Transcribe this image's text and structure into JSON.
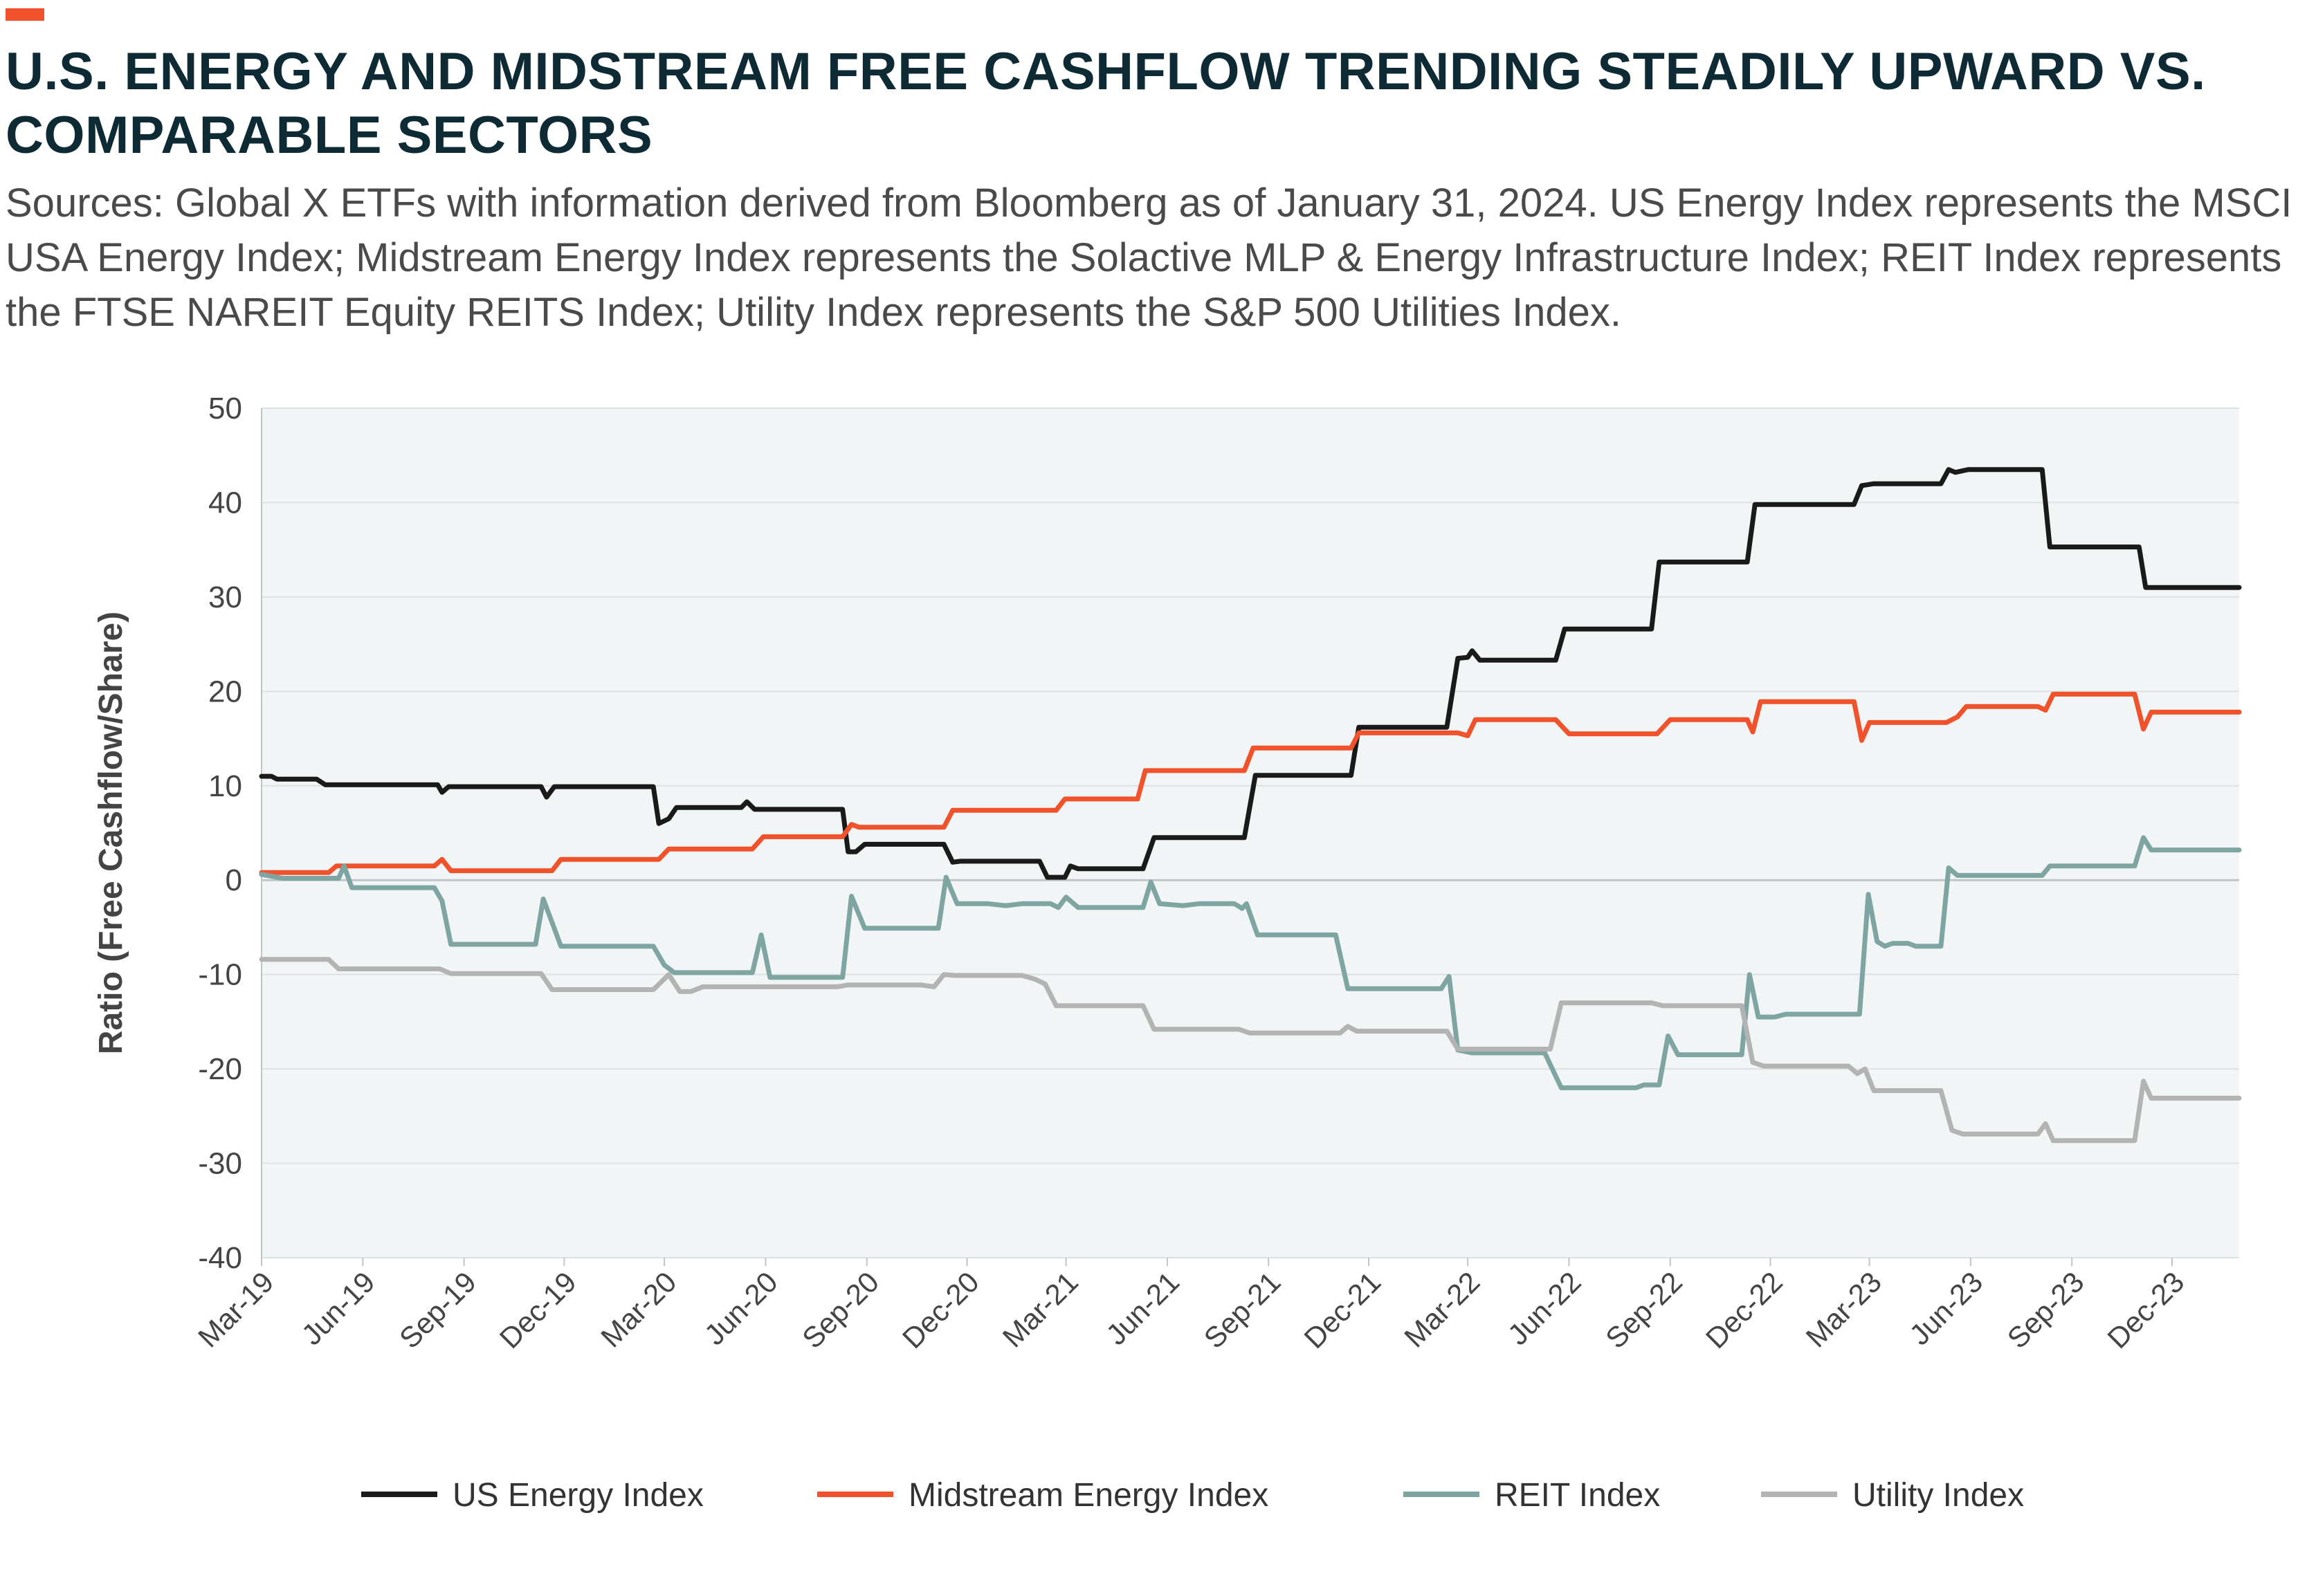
{
  "header": {
    "title": "U.S. ENERGY AND MIDSTREAM FREE CASHFLOW TRENDING STEADILY UPWARD VS. COMPARABLE SECTORS",
    "subtitle": "Sources: Global X ETFs with information derived from Bloomberg as of January 31, 2024. US Energy Index represents the MSCI USA Energy Index; Midstream Energy Index represents the Solactive MLP & Energy Infrastructure Index; REIT Index represents the FTSE NAREIT Equity REITS Index; Utility Index represents the S&P 500 Utilities Index.",
    "accent_color": "#F0532B"
  },
  "chart_data": {
    "type": "line",
    "title": "U.S. ENERGY AND MIDSTREAM FREE CASHFLOW TRENDING STEADILY UPWARD VS. COMPARABLE SECTORS",
    "xlabel": "",
    "ylabel": "Ratio (Free Cashflow/Share)",
    "ylim": [
      -40,
      50
    ],
    "yticks": [
      "50",
      "40",
      "30",
      "20",
      "10",
      "0",
      "-10",
      "-20",
      "-30",
      "-40"
    ],
    "xticks": [
      "Mar-19",
      "Jun-19",
      "Sep-19",
      "Dec-19",
      "Mar-20",
      "Jun-20",
      "Sep-20",
      "Dec-20",
      "Mar-21",
      "Jun-21",
      "Sep-21",
      "Dec-21",
      "Mar-22",
      "Jun-22",
      "Sep-22",
      "Dec-22",
      "Mar-23",
      "Jun-23",
      "Sep-23",
      "Dec-23"
    ],
    "xlim": [
      "2019-03-01",
      "2024-01-31"
    ],
    "grid": true,
    "legend_position": "bottom",
    "background_color": "#F2F5F5",
    "series": [
      {
        "name": "US Energy Index",
        "color": "#1A1A1A",
        "points": [
          [
            "2019-03-01",
            11.0
          ],
          [
            "2019-03-10",
            11.0
          ],
          [
            "2019-03-15",
            10.7
          ],
          [
            "2019-04-20",
            10.7
          ],
          [
            "2019-04-28",
            10.1
          ],
          [
            "2019-08-08",
            10.1
          ],
          [
            "2019-08-12",
            9.3
          ],
          [
            "2019-08-18",
            9.9
          ],
          [
            "2019-11-10",
            9.9
          ],
          [
            "2019-11-15",
            8.8
          ],
          [
            "2019-11-22",
            9.9
          ],
          [
            "2020-02-20",
            9.9
          ],
          [
            "2020-02-25",
            6.0
          ],
          [
            "2020-03-05",
            6.5
          ],
          [
            "2020-03-12",
            7.7
          ],
          [
            "2020-05-10",
            7.7
          ],
          [
            "2020-05-15",
            8.3
          ],
          [
            "2020-05-22",
            7.5
          ],
          [
            "2020-08-10",
            7.5
          ],
          [
            "2020-08-15",
            3.0
          ],
          [
            "2020-08-22",
            3.0
          ],
          [
            "2020-08-30",
            3.8
          ],
          [
            "2020-11-10",
            3.8
          ],
          [
            "2020-11-18",
            1.9
          ],
          [
            "2020-11-25",
            2.0
          ],
          [
            "2021-02-05",
            2.0
          ],
          [
            "2021-02-12",
            0.3
          ],
          [
            "2021-02-28",
            0.3
          ],
          [
            "2021-03-05",
            1.5
          ],
          [
            "2021-03-12",
            1.2
          ],
          [
            "2021-05-10",
            1.2
          ],
          [
            "2021-05-20",
            4.5
          ],
          [
            "2021-08-10",
            4.5
          ],
          [
            "2021-08-20",
            11.1
          ],
          [
            "2021-11-15",
            11.1
          ],
          [
            "2021-11-22",
            16.2
          ],
          [
            "2022-02-10",
            16.2
          ],
          [
            "2022-02-20",
            23.5
          ],
          [
            "2022-03-01",
            23.6
          ],
          [
            "2022-03-05",
            24.3
          ],
          [
            "2022-03-12",
            23.3
          ],
          [
            "2022-05-20",
            23.3
          ],
          [
            "2022-05-28",
            26.6
          ],
          [
            "2022-08-15",
            26.6
          ],
          [
            "2022-08-22",
            33.7
          ],
          [
            "2022-11-10",
            33.7
          ],
          [
            "2022-11-17",
            39.8
          ],
          [
            "2022-11-25",
            39.8
          ],
          [
            "2023-02-15",
            39.8
          ],
          [
            "2023-02-22",
            41.8
          ],
          [
            "2023-03-05",
            42.0
          ],
          [
            "2023-05-05",
            42.0
          ],
          [
            "2023-05-12",
            43.5
          ],
          [
            "2023-05-18",
            43.2
          ],
          [
            "2023-05-30",
            43.5
          ],
          [
            "2023-08-05",
            43.5
          ],
          [
            "2023-08-12",
            35.3
          ],
          [
            "2023-11-01",
            35.3
          ],
          [
            "2023-11-07",
            31.0
          ],
          [
            "2024-01-31",
            31.0
          ]
        ]
      },
      {
        "name": "Midstream Energy Index",
        "color": "#F0532B",
        "points": [
          [
            "2019-03-01",
            0.8
          ],
          [
            "2019-05-01",
            0.8
          ],
          [
            "2019-05-08",
            1.5
          ],
          [
            "2019-08-05",
            1.5
          ],
          [
            "2019-08-12",
            2.2
          ],
          [
            "2019-08-20",
            1.0
          ],
          [
            "2019-11-20",
            1.0
          ],
          [
            "2019-11-28",
            2.2
          ],
          [
            "2020-02-25",
            2.2
          ],
          [
            "2020-03-05",
            3.3
          ],
          [
            "2020-05-20",
            3.3
          ],
          [
            "2020-05-30",
            4.6
          ],
          [
            "2020-08-10",
            4.6
          ],
          [
            "2020-08-18",
            5.9
          ],
          [
            "2020-08-25",
            5.6
          ],
          [
            "2020-11-10",
            5.6
          ],
          [
            "2020-11-18",
            7.4
          ],
          [
            "2021-02-20",
            7.4
          ],
          [
            "2021-02-28",
            8.6
          ],
          [
            "2021-05-05",
            8.6
          ],
          [
            "2021-05-12",
            11.6
          ],
          [
            "2021-08-10",
            11.6
          ],
          [
            "2021-08-18",
            14.0
          ],
          [
            "2021-11-15",
            14.0
          ],
          [
            "2021-11-22",
            15.6
          ],
          [
            "2022-02-20",
            15.6
          ],
          [
            "2022-03-01",
            15.3
          ],
          [
            "2022-03-08",
            17.0
          ],
          [
            "2022-05-20",
            17.0
          ],
          [
            "2022-06-01",
            15.5
          ],
          [
            "2022-08-20",
            15.5
          ],
          [
            "2022-09-01",
            17.0
          ],
          [
            "2022-11-10",
            17.0
          ],
          [
            "2022-11-15",
            15.7
          ],
          [
            "2022-11-22",
            18.9
          ],
          [
            "2023-02-15",
            18.9
          ],
          [
            "2023-02-22",
            14.8
          ],
          [
            "2023-03-01",
            16.7
          ],
          [
            "2023-05-10",
            16.7
          ],
          [
            "2023-05-20",
            17.3
          ],
          [
            "2023-05-28",
            18.4
          ],
          [
            "2023-08-01",
            18.4
          ],
          [
            "2023-08-08",
            18.0
          ],
          [
            "2023-08-15",
            19.7
          ],
          [
            "2023-10-28",
            19.7
          ],
          [
            "2023-11-05",
            16.0
          ],
          [
            "2023-11-12",
            17.8
          ],
          [
            "2024-01-31",
            17.8
          ]
        ]
      },
      {
        "name": "REIT Index",
        "color": "#7FA5A3",
        "points": [
          [
            "2019-03-01",
            0.6
          ],
          [
            "2019-03-20",
            0.2
          ],
          [
            "2019-05-10",
            0.2
          ],
          [
            "2019-05-15",
            1.5
          ],
          [
            "2019-05-22",
            -0.8
          ],
          [
            "2019-08-05",
            -0.8
          ],
          [
            "2019-08-12",
            -2.2
          ],
          [
            "2019-08-20",
            -6.8
          ],
          [
            "2019-11-05",
            -6.8
          ],
          [
            "2019-11-12",
            -2.0
          ],
          [
            "2019-11-20",
            -4.5
          ],
          [
            "2019-11-28",
            -7.0
          ],
          [
            "2020-02-20",
            -7.0
          ],
          [
            "2020-03-01",
            -9.0
          ],
          [
            "2020-03-10",
            -9.8
          ],
          [
            "2020-05-20",
            -9.8
          ],
          [
            "2020-05-28",
            -5.8
          ],
          [
            "2020-06-05",
            -10.3
          ],
          [
            "2020-08-10",
            -10.3
          ],
          [
            "2020-08-18",
            -1.7
          ],
          [
            "2020-08-30",
            -5.1
          ],
          [
            "2020-11-05",
            -5.1
          ],
          [
            "2020-11-12",
            0.3
          ],
          [
            "2020-11-22",
            -2.5
          ],
          [
            "2020-12-20",
            -2.5
          ],
          [
            "2021-01-05",
            -2.7
          ],
          [
            "2021-01-20",
            -2.5
          ],
          [
            "2021-02-15",
            -2.5
          ],
          [
            "2021-02-22",
            -2.9
          ],
          [
            "2021-03-01",
            -1.8
          ],
          [
            "2021-03-12",
            -2.9
          ],
          [
            "2021-05-10",
            -2.9
          ],
          [
            "2021-05-17",
            -0.2
          ],
          [
            "2021-05-25",
            -2.5
          ],
          [
            "2021-06-15",
            -2.7
          ],
          [
            "2021-06-30",
            -2.5
          ],
          [
            "2021-08-01",
            -2.5
          ],
          [
            "2021-08-08",
            -3.0
          ],
          [
            "2021-08-12",
            -2.5
          ],
          [
            "2021-08-22",
            -5.8
          ],
          [
            "2021-11-01",
            -5.8
          ],
          [
            "2021-11-12",
            -11.5
          ],
          [
            "2022-02-05",
            -11.5
          ],
          [
            "2022-02-12",
            -10.2
          ],
          [
            "2022-02-20",
            -18.0
          ],
          [
            "2022-03-05",
            -18.3
          ],
          [
            "2022-05-10",
            -18.3
          ],
          [
            "2022-05-25",
            -22.0
          ],
          [
            "2022-08-01",
            -22.0
          ],
          [
            "2022-08-08",
            -21.7
          ],
          [
            "2022-08-22",
            -21.7
          ],
          [
            "2022-08-30",
            -16.5
          ],
          [
            "2022-09-08",
            -18.5
          ],
          [
            "2022-11-05",
            -18.5
          ],
          [
            "2022-11-12",
            -10.0
          ],
          [
            "2022-11-20",
            -14.5
          ],
          [
            "2022-12-05",
            -14.5
          ],
          [
            "2022-12-15",
            -14.2
          ],
          [
            "2023-02-20",
            -14.2
          ],
          [
            "2023-02-28",
            -1.5
          ],
          [
            "2023-03-08",
            -6.5
          ],
          [
            "2023-03-15",
            -7.0
          ],
          [
            "2023-03-22",
            -6.7
          ],
          [
            "2023-04-05",
            -6.7
          ],
          [
            "2023-04-12",
            -7.0
          ],
          [
            "2023-05-05",
            -7.0
          ],
          [
            "2023-05-12",
            1.3
          ],
          [
            "2023-05-20",
            0.5
          ],
          [
            "2023-08-05",
            0.5
          ],
          [
            "2023-08-12",
            1.5
          ],
          [
            "2023-10-28",
            1.5
          ],
          [
            "2023-11-05",
            4.5
          ],
          [
            "2023-11-12",
            3.2
          ],
          [
            "2024-01-31",
            3.2
          ]
        ]
      },
      {
        "name": "Utility Index",
        "color": "#B3B3B3",
        "points": [
          [
            "2019-03-01",
            -8.4
          ],
          [
            "2019-05-01",
            -8.4
          ],
          [
            "2019-05-10",
            -9.4
          ],
          [
            "2019-08-10",
            -9.4
          ],
          [
            "2019-08-20",
            -9.9
          ],
          [
            "2019-11-10",
            -9.9
          ],
          [
            "2019-11-20",
            -11.6
          ],
          [
            "2020-02-20",
            -11.6
          ],
          [
            "2020-03-05",
            -10.0
          ],
          [
            "2020-03-15",
            -11.8
          ],
          [
            "2020-03-25",
            -11.8
          ],
          [
            "2020-04-05",
            -11.3
          ],
          [
            "2020-08-05",
            -11.3
          ],
          [
            "2020-08-15",
            -11.1
          ],
          [
            "2020-10-20",
            -11.1
          ],
          [
            "2020-11-01",
            -11.3
          ],
          [
            "2020-11-10",
            -10.0
          ],
          [
            "2020-11-20",
            -10.1
          ],
          [
            "2021-01-20",
            -10.1
          ],
          [
            "2021-02-01",
            -10.5
          ],
          [
            "2021-02-10",
            -11.0
          ],
          [
            "2021-02-20",
            -13.3
          ],
          [
            "2021-05-10",
            -13.3
          ],
          [
            "2021-05-20",
            -15.8
          ],
          [
            "2021-08-05",
            -15.8
          ],
          [
            "2021-08-15",
            -16.2
          ],
          [
            "2021-11-05",
            -16.2
          ],
          [
            "2021-11-12",
            -15.5
          ],
          [
            "2021-11-20",
            -16.0
          ],
          [
            "2022-02-10",
            -16.0
          ],
          [
            "2022-02-20",
            -17.9
          ],
          [
            "2022-05-15",
            -17.9
          ],
          [
            "2022-05-25",
            -13.0
          ],
          [
            "2022-08-15",
            -13.0
          ],
          [
            "2022-08-25",
            -13.3
          ],
          [
            "2022-11-05",
            -13.3
          ],
          [
            "2022-11-15",
            -19.3
          ],
          [
            "2022-11-25",
            -19.7
          ],
          [
            "2023-02-10",
            -19.7
          ],
          [
            "2023-02-18",
            -20.5
          ],
          [
            "2023-02-25",
            -20.0
          ],
          [
            "2023-03-05",
            -22.3
          ],
          [
            "2023-05-05",
            -22.3
          ],
          [
            "2023-05-15",
            -26.5
          ],
          [
            "2023-05-25",
            -26.9
          ],
          [
            "2023-08-01",
            -26.9
          ],
          [
            "2023-08-08",
            -25.8
          ],
          [
            "2023-08-15",
            -27.6
          ],
          [
            "2023-10-28",
            -27.6
          ],
          [
            "2023-11-05",
            -21.3
          ],
          [
            "2023-11-12",
            -23.1
          ],
          [
            "2024-01-31",
            -23.1
          ]
        ]
      }
    ]
  }
}
